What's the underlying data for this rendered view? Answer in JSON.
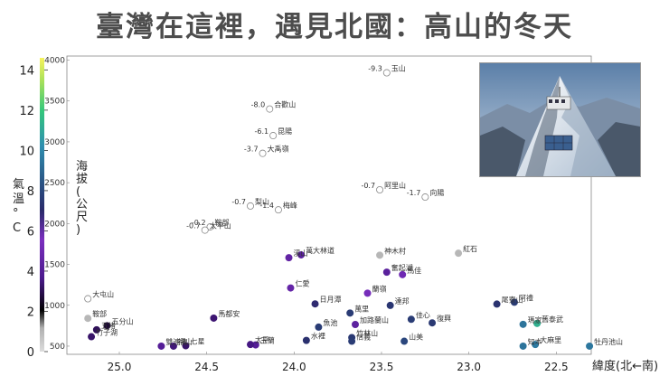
{
  "title": "臺灣在這裡，遇見北國：高山的冬天",
  "chart_data": {
    "type": "scatter",
    "xlabel": "緯度(北←南)",
    "ylabel": "海拔(公尺)",
    "colorbar_label": "氣溫°C",
    "x_ticks": [
      25.0,
      24.5,
      24.0,
      23.5,
      23.0,
      22.5
    ],
    "y_ticks": [
      500,
      1000,
      1500,
      2000,
      2500,
      3000,
      3500,
      4000
    ],
    "colorbar_ticks": [
      0,
      2,
      4,
      6,
      8,
      10,
      12,
      14
    ],
    "xlim": [
      25.3,
      22.3
    ],
    "ylim": [
      400,
      4050
    ],
    "color_range": [
      0,
      14.6
    ],
    "points": [
      {
        "name": "玉山",
        "lat": 23.47,
        "alt": 3845,
        "temp": -9.3,
        "temp_label": "-9.3"
      },
      {
        "name": "合歡山",
        "lat": 24.14,
        "alt": 3402,
        "temp": -8.0,
        "temp_label": "-8.0"
      },
      {
        "name": "昆陽",
        "lat": 24.12,
        "alt": 3076,
        "temp": -6.1,
        "temp_label": "-6.1"
      },
      {
        "name": "大禹嶺",
        "lat": 24.18,
        "alt": 2859,
        "temp": -3.7,
        "temp_label": "-3.7"
      },
      {
        "name": "阿里山",
        "lat": 23.51,
        "alt": 2413,
        "temp": -0.7,
        "temp_label": "-0.7"
      },
      {
        "name": "向陽",
        "lat": 23.25,
        "alt": 2324,
        "temp": -1.7,
        "temp_label": "-1.7"
      },
      {
        "name": "梨山",
        "lat": 24.25,
        "alt": 2215,
        "temp": -0.7,
        "temp_label": "-0.7"
      },
      {
        "name": "梅峰",
        "lat": 24.09,
        "alt": 2168,
        "temp": -1.4,
        "temp_label": "-1.4"
      },
      {
        "name": "鞍部",
        "lat": 24.48,
        "alt": 1960,
        "temp": -0.2,
        "temp_label": "-0.2"
      },
      {
        "name": "太平山",
        "lat": 24.51,
        "alt": 1920,
        "temp": -0.7,
        "temp_label": "-0.7"
      },
      {
        "name": "紅石",
        "lat": 23.06,
        "alt": 1637,
        "temp": 1.0,
        "temp_label": ""
      },
      {
        "name": "神木村",
        "lat": 23.51,
        "alt": 1613,
        "temp": 1.0,
        "temp_label": ""
      },
      {
        "name": "萬大林道",
        "lat": 23.96,
        "alt": 1617,
        "temp": 4.2,
        "temp_label": ""
      },
      {
        "name": "溪山",
        "lat": 24.03,
        "alt": 1582,
        "temp": 4.5,
        "temp_label": ""
      },
      {
        "name": "奮起湖",
        "lat": 23.47,
        "alt": 1405,
        "temp": 4.2,
        "temp_label": ""
      },
      {
        "name": "馬佳",
        "lat": 23.38,
        "alt": 1375,
        "temp": 5.0,
        "temp_label": ""
      },
      {
        "name": "仁愛",
        "lat": 24.02,
        "alt": 1212,
        "temp": 4.6,
        "temp_label": ""
      },
      {
        "name": "蘭嶺",
        "lat": 23.58,
        "alt": 1148,
        "temp": 5.3,
        "temp_label": ""
      },
      {
        "name": "日月潭",
        "lat": 23.88,
        "alt": 1017,
        "temp": 6.9,
        "temp_label": ""
      },
      {
        "name": "達邦",
        "lat": 23.45,
        "alt": 998,
        "temp": 7.4,
        "temp_label": ""
      },
      {
        "name": "萬里",
        "lat": 23.68,
        "alt": 905,
        "temp": 7.6,
        "temp_label": ""
      },
      {
        "name": "佳心",
        "lat": 23.33,
        "alt": 828,
        "temp": 7.6,
        "temp_label": ""
      },
      {
        "name": "復興",
        "lat": 23.21,
        "alt": 785,
        "temp": 7.5,
        "temp_label": ""
      },
      {
        "name": "魚池",
        "lat": 23.86,
        "alt": 733,
        "temp": 7.6,
        "temp_label": ""
      },
      {
        "name": "加路蘭山",
        "lat": 23.65,
        "alt": 765,
        "temp": 4.3,
        "temp_label": ""
      },
      {
        "name": "水裡",
        "lat": 23.93,
        "alt": 570,
        "temp": 7.2,
        "temp_label": ""
      },
      {
        "name": "竹林山",
        "lat": 23.67,
        "alt": 605,
        "temp": 7.5,
        "temp_label": ""
      },
      {
        "name": "信義",
        "lat": 23.67,
        "alt": 560,
        "temp": 7.6,
        "temp_label": ""
      },
      {
        "name": "山美",
        "lat": 23.37,
        "alt": 560,
        "temp": 8.0,
        "temp_label": ""
      },
      {
        "name": "尾寮山",
        "lat": 22.84,
        "alt": 1015,
        "temp": 7.3,
        "temp_label": ""
      },
      {
        "name": "阿禮",
        "lat": 22.74,
        "alt": 1037,
        "temp": 7.6,
        "temp_label": ""
      },
      {
        "name": "瑪家",
        "lat": 22.69,
        "alt": 767,
        "temp": 9.4,
        "temp_label": ""
      },
      {
        "name": "舊泰武",
        "lat": 22.61,
        "alt": 778,
        "temp": 11.3,
        "temp_label": ""
      },
      {
        "name": "知本",
        "lat": 22.69,
        "alt": 500,
        "temp": 9.4,
        "temp_label": ""
      },
      {
        "name": "大麻里",
        "lat": 22.62,
        "alt": 520,
        "temp": 9.6,
        "temp_label": ""
      },
      {
        "name": "牡丹池山",
        "lat": 22.31,
        "alt": 500,
        "temp": 9.5,
        "temp_label": ""
      },
      {
        "name": "大屯山",
        "lat": 25.18,
        "alt": 1080,
        "temp": -0.3,
        "temp_label": ""
      },
      {
        "name": "鞍部2",
        "lat": 25.18,
        "alt": 840,
        "temp": 1.0,
        "temp_label": ""
      },
      {
        "name": "五分山",
        "lat": 25.07,
        "alt": 750,
        "temp": 2.6,
        "temp_label": ""
      },
      {
        "name": "五堵",
        "lat": 25.13,
        "alt": 700,
        "temp": 3.0,
        "temp_label": ""
      },
      {
        "name": "竹子湖",
        "lat": 25.16,
        "alt": 615,
        "temp": 3.2,
        "temp_label": ""
      },
      {
        "name": "馬都安",
        "lat": 24.46,
        "alt": 843,
        "temp": 3.3,
        "temp_label": ""
      },
      {
        "name": "雙連埤",
        "lat": 24.76,
        "alt": 500,
        "temp": 4.0,
        "temp_label": ""
      },
      {
        "name": "福山",
        "lat": 24.69,
        "alt": 500,
        "temp": 3.4,
        "temp_label": ""
      },
      {
        "name": "七星",
        "lat": 24.62,
        "alt": 505,
        "temp": 3.2,
        "temp_label": ""
      },
      {
        "name": "玉蘭",
        "lat": 24.22,
        "alt": 515,
        "temp": 4.0,
        "temp_label": ""
      },
      {
        "name": "太平",
        "lat": 24.25,
        "alt": 520,
        "temp": 3.5,
        "temp_label": ""
      }
    ]
  },
  "labels": {
    "玉山": "玉山",
    "合歡山": "合歡山",
    "昆陽": "昆陽",
    "大禹嶺": "大禹嶺",
    "阿里山": "阿里山",
    "向陽": "向陽",
    "梨山": "梨山",
    "梅峰": "梅峰",
    "鞍部": "鞍部",
    "太平山": "太平山",
    "紅石": "紅石",
    "神木村": "神木村",
    "萬大林道": "萬大林道",
    "溪山": "溪山",
    "奮起湖": "奮起湖",
    "馬佳": "馬佳",
    "仁愛": "仁愛",
    "蘭嶺": "蘭嶺",
    "日月潭": "日月潭",
    "達邦": "達邦",
    "萬里": "萬里",
    "佳心": "佳心",
    "復興": "復興",
    "魚池": "魚池",
    "加路蘭山": "加路蘭山",
    "水裡": "水裡",
    "竹林山": "竹林山",
    "信義": "信義",
    "山美": "山美",
    "尾寮山": "尾寮山",
    "阿禮": "阿禮",
    "瑪家": "瑪家",
    "舊泰武": "舊泰武",
    "知本": "知本",
    "大麻里": "大麻里",
    "牡丹池山": "牡丹池山",
    "大屯山": "大屯山",
    "鞍部2": "鞍部",
    "五分山": "五分山",
    "五堵": "五堵",
    "竹子湖": "竹子湖",
    "馬都安": "馬都安",
    "雙連埤": "雙連埤",
    "福山": "福山",
    "七星": "七星",
    "玉蘭": "玉蘭",
    "太平": "太平"
  }
}
